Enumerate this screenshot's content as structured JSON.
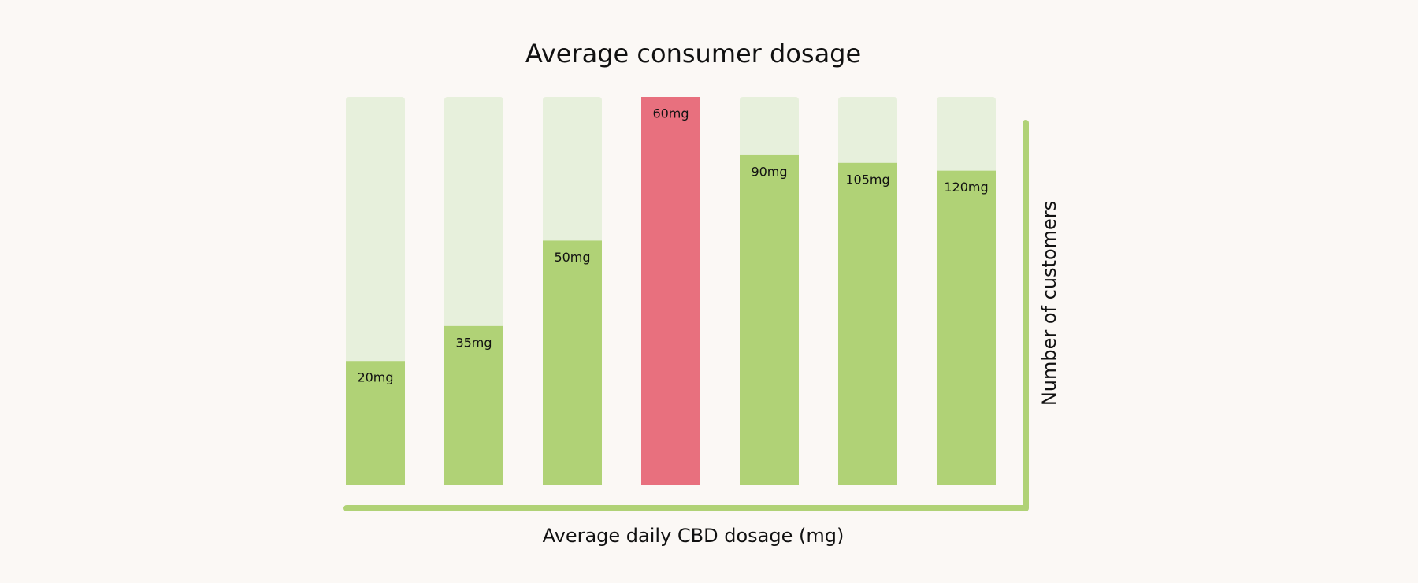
{
  "chart_data": {
    "type": "bar",
    "title": "Average consumer dosage",
    "x_label": "Average daily CBD dosage (mg)",
    "y_label": "Number of customers",
    "categories": [
      "20mg",
      "35mg",
      "50mg",
      "60mg",
      "90mg",
      "105mg",
      "120mg"
    ],
    "values": [
      32,
      41,
      63,
      100,
      85,
      83,
      81
    ],
    "colors": [
      "#b0d276",
      "#b0d276",
      "#b0d276",
      "#e8707e",
      "#b0d276",
      "#b0d276",
      "#b0d276"
    ],
    "track_color": "#e7f0dc",
    "axis_color": "#b0d276",
    "ylim": [
      0,
      100
    ]
  }
}
